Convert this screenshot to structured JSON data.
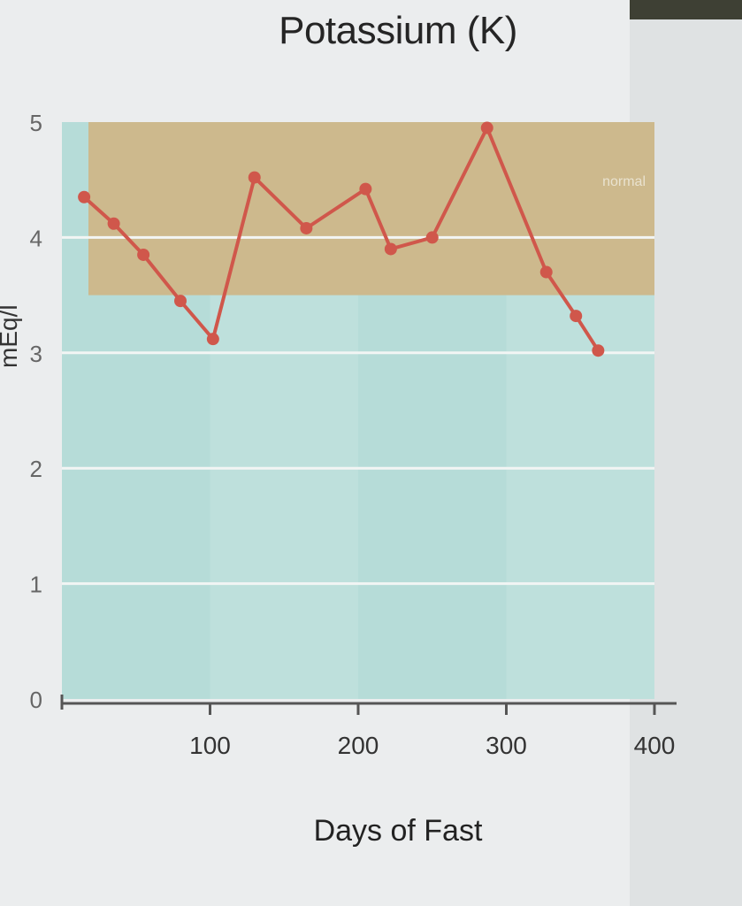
{
  "chart_data": {
    "type": "line",
    "title": "Potassium (K)",
    "xlabel": "Days of Fast",
    "ylabel": "mEq/l",
    "xlim": [
      0,
      400
    ],
    "ylim": [
      0,
      5
    ],
    "x_ticks": [
      100,
      200,
      300,
      400
    ],
    "y_ticks": [
      0,
      1,
      2,
      3,
      4,
      5
    ],
    "grid": true,
    "normal_range": {
      "label": "normal",
      "low": 3.5,
      "high": 5.0
    },
    "series": [
      {
        "color": "#d0574b",
        "points": [
          {
            "x": 15,
            "y": 4.35
          },
          {
            "x": 35,
            "y": 4.12
          },
          {
            "x": 55,
            "y": 3.85
          },
          {
            "x": 80,
            "y": 3.45
          },
          {
            "x": 102,
            "y": 3.12
          },
          {
            "x": 130,
            "y": 4.52
          },
          {
            "x": 165,
            "y": 4.08
          },
          {
            "x": 205,
            "y": 4.42
          },
          {
            "x": 222,
            "y": 3.9
          },
          {
            "x": 250,
            "y": 4.0
          },
          {
            "x": 287,
            "y": 4.95
          },
          {
            "x": 327,
            "y": 3.7
          },
          {
            "x": 347,
            "y": 3.32
          },
          {
            "x": 362,
            "y": 3.02
          }
        ]
      }
    ],
    "colors": {
      "normal_band": "#cdb98d",
      "plot_bg": "#b6dcd8",
      "grid": "#f2f5f4",
      "axis": "#555555"
    }
  }
}
